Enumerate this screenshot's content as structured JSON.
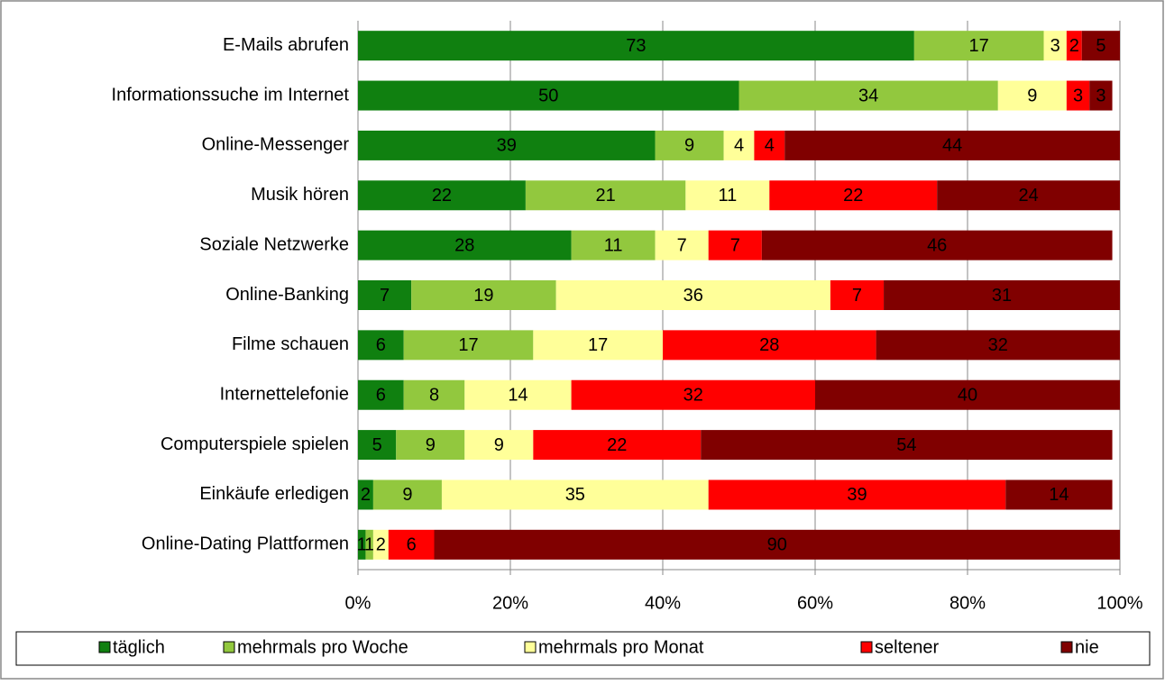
{
  "chart_data": {
    "type": "bar",
    "orientation": "horizontal",
    "stacked": true,
    "categories": [
      "E-Mails abrufen",
      "Informationssuche im Internet",
      "Online-Messenger",
      "Musik hören",
      "Soziale Netzwerke",
      "Online-Banking",
      "Filme schauen",
      "Internettelefonie",
      "Computerspiele spielen",
      "Einkäufe erledigen",
      "Online-Dating Plattformen"
    ],
    "series": [
      {
        "name": "täglich",
        "color": "#108010",
        "values": [
          73,
          50,
          39,
          22,
          28,
          7,
          6,
          6,
          5,
          2,
          1
        ]
      },
      {
        "name": "mehrmals pro Woche",
        "color": "#92c83e",
        "values": [
          17,
          34,
          9,
          21,
          11,
          19,
          17,
          8,
          9,
          9,
          1
        ]
      },
      {
        "name": "mehrmals pro Monat",
        "color": "#ffff99",
        "values": [
          3,
          9,
          4,
          11,
          7,
          36,
          17,
          14,
          9,
          35,
          2
        ]
      },
      {
        "name": "seltener",
        "color": "#ff0000",
        "values": [
          2,
          3,
          4,
          22,
          7,
          7,
          28,
          32,
          22,
          39,
          6
        ]
      },
      {
        "name": "nie",
        "color": "#800000",
        "values": [
          5,
          3,
          44,
          24,
          46,
          31,
          32,
          40,
          54,
          14,
          90
        ]
      }
    ],
    "xlim": [
      0,
      100
    ],
    "xticks": [
      {
        "value": 0,
        "label": "0%"
      },
      {
        "value": 20,
        "label": "20%"
      },
      {
        "value": 40,
        "label": "40%"
      },
      {
        "value": 60,
        "label": "60%"
      },
      {
        "value": 80,
        "label": "80%"
      },
      {
        "value": 100,
        "label": "100%"
      }
    ],
    "grid": true,
    "legend": "bottom"
  }
}
